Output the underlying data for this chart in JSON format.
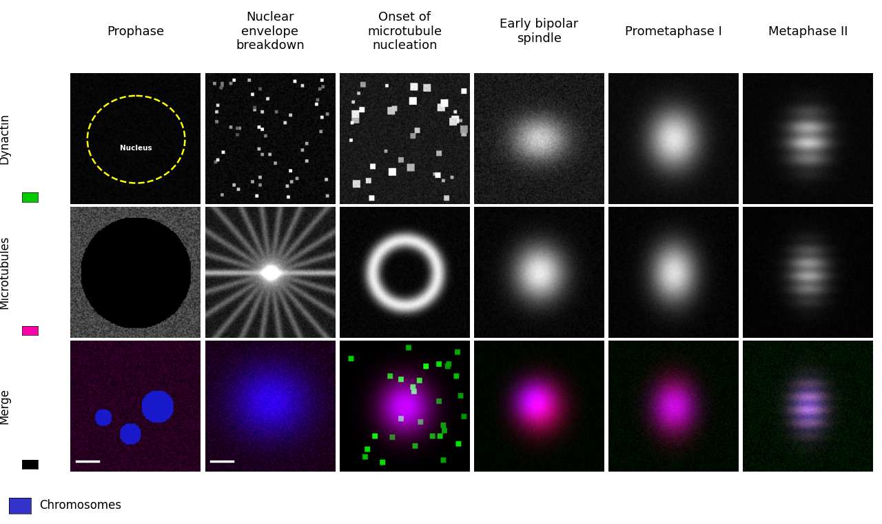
{
  "title": "",
  "background_color": "#ffffff",
  "col_headers": [
    "Prophase",
    "Nuclear\nenvelope\nbreakdown",
    "Onset of\nmicrotubule\nnucleation",
    "Early bipolar\nspindle",
    "Prometaphase I",
    "Metaphase II"
  ],
  "row_labels": [
    "Dynactin",
    "Microtubules",
    "Merge"
  ],
  "row_label_colors": [
    "#000000",
    "#000000",
    "#000000"
  ],
  "legend_items": [
    {
      "label": "Dynactin",
      "color": "#00cc00"
    },
    {
      "label": "Microtubules",
      "color": "#ff00aa"
    },
    {
      "label": "Chromosomes",
      "color": "#3333cc"
    }
  ],
  "n_rows": 3,
  "n_cols": 6,
  "outer_bg": "#ffffff",
  "panel_bg": "#000000",
  "header_fontsize": 13,
  "row_label_fontsize": 12
}
